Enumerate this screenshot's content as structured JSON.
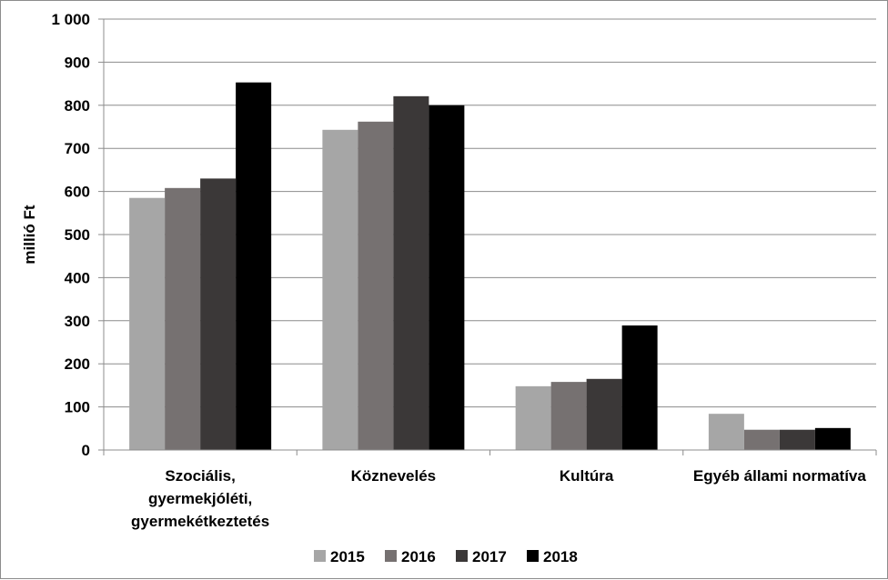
{
  "chart_data": {
    "type": "bar",
    "title": "",
    "ylabel": "millió Ft",
    "xlabel": "",
    "ylim": [
      0,
      1000
    ],
    "yticks": [
      0,
      100,
      200,
      300,
      400,
      500,
      600,
      700,
      800,
      900,
      1000
    ],
    "ytick_labels": [
      "0",
      "100",
      "200",
      "300",
      "400",
      "500",
      "600",
      "700",
      "800",
      "900",
      "1 000"
    ],
    "categories": [
      [
        "Szociális,",
        "gyermekjóléti,",
        "gyermekétkeztetés"
      ],
      [
        "Köznevelés"
      ],
      [
        "Kultúra"
      ],
      [
        "Egyéb állami normatíva"
      ]
    ],
    "series": [
      {
        "name": "2015",
        "color": "#a6a6a6",
        "values": [
          585,
          743,
          148,
          84
        ]
      },
      {
        "name": "2016",
        "color": "#767171",
        "values": [
          608,
          762,
          158,
          47
        ]
      },
      {
        "name": "2017",
        "color": "#3b3838",
        "values": [
          630,
          821,
          165,
          47
        ]
      },
      {
        "name": "2018",
        "color": "#000000",
        "values": [
          853,
          800,
          289,
          51
        ]
      }
    ],
    "grid": true,
    "legend": "bottom"
  }
}
